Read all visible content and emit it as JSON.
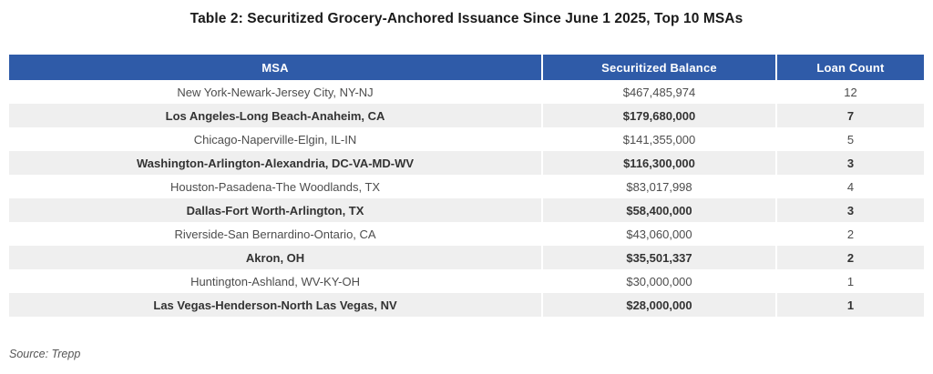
{
  "title": "Table 2: Securitized Grocery-Anchored Issuance Since June 1 2025, Top 10 MSAs",
  "source_note": "Source: Trepp",
  "colors": {
    "header-bg": "#2F5BA8",
    "header-text": "#FFFFFF",
    "row-alt-bg": "#EFEFEF",
    "row-text": "#4D4D4D",
    "row-alt-text": "#333333",
    "title-text": "#1A1A1A",
    "source-text": "#555555"
  },
  "table": {
    "columns": [
      {
        "label": "MSA"
      },
      {
        "label": "Securitized Balance"
      },
      {
        "label": "Loan Count"
      }
    ],
    "rows": [
      {
        "msa": "New York-Newark-Jersey City, NY-NJ",
        "balance": "$467,485,974",
        "count": "12"
      },
      {
        "msa": "Los Angeles-Long Beach-Anaheim, CA",
        "balance": "$179,680,000",
        "count": "7"
      },
      {
        "msa": "Chicago-Naperville-Elgin, IL-IN",
        "balance": "$141,355,000",
        "count": "5"
      },
      {
        "msa": "Washington-Arlington-Alexandria, DC-VA-MD-WV",
        "balance": "$116,300,000",
        "count": "3"
      },
      {
        "msa": "Houston-Pasadena-The Woodlands, TX",
        "balance": "$83,017,998",
        "count": "4"
      },
      {
        "msa": "Dallas-Fort Worth-Arlington, TX",
        "balance": "$58,400,000",
        "count": "3"
      },
      {
        "msa": "Riverside-San Bernardino-Ontario, CA",
        "balance": "$43,060,000",
        "count": "2"
      },
      {
        "msa": "Akron, OH",
        "balance": "$35,501,337",
        "count": "2"
      },
      {
        "msa": "Huntington-Ashland, WV-KY-OH",
        "balance": "$30,000,000",
        "count": "1"
      },
      {
        "msa": "Las Vegas-Henderson-North Las Vegas, NV",
        "balance": "$28,000,000",
        "count": "1"
      }
    ]
  },
  "chart_data": {
    "type": "table",
    "title": "Table 2: Securitized Grocery-Anchored Issuance Since June 1 2025, Top 10 MSAs",
    "columns": [
      "MSA",
      "Securitized Balance",
      "Loan Count"
    ],
    "rows": [
      [
        "New York-Newark-Jersey City, NY-NJ",
        467485974,
        12
      ],
      [
        "Los Angeles-Long Beach-Anaheim, CA",
        179680000,
        7
      ],
      [
        "Chicago-Naperville-Elgin, IL-IN",
        141355000,
        5
      ],
      [
        "Washington-Arlington-Alexandria, DC-VA-MD-WV",
        116300000,
        3
      ],
      [
        "Houston-Pasadena-The Woodlands, TX",
        83017998,
        4
      ],
      [
        "Dallas-Fort Worth-Arlington, TX",
        58400000,
        3
      ],
      [
        "Riverside-San Bernardino-Ontario, CA",
        43060000,
        2
      ],
      [
        "Akron, OH",
        35501337,
        2
      ],
      [
        "Huntington-Ashland, WV-KY-OH",
        30000000,
        1
      ],
      [
        "Las Vegas-Henderson-North Las Vegas, NV",
        28000000,
        1
      ]
    ],
    "source": "Source: Trepp"
  }
}
